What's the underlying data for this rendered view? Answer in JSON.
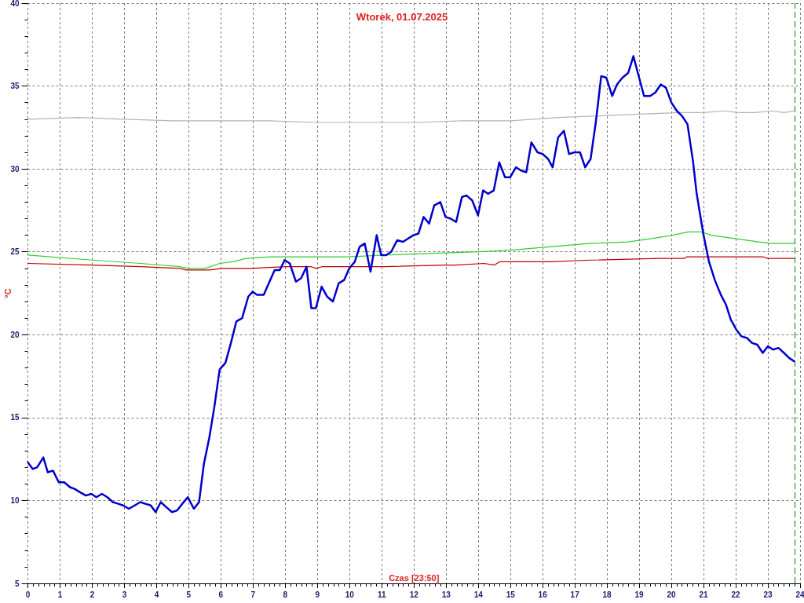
{
  "chart_data": {
    "type": "line",
    "title": "Wtorek, 01.07.2025",
    "xlabel": "Czas [23:50]",
    "ylabel": "°C",
    "xlim": [
      0,
      24
    ],
    "xticks": [
      0,
      1,
      2,
      3,
      4,
      5,
      6,
      7,
      8,
      9,
      10,
      11,
      12,
      13,
      14,
      15,
      16,
      17,
      18,
      19,
      20,
      21,
      22,
      23,
      24
    ],
    "ylim": [
      5,
      40
    ],
    "yticks": [
      5,
      10,
      15,
      20,
      25,
      30,
      35,
      40
    ],
    "grid": true,
    "marker": "none",
    "line_style": "solid",
    "series": [
      {
        "color": "#0000cc",
        "x": [
          0,
          0.15,
          0.29,
          0.48,
          0.62,
          0.78,
          0.96,
          1.13,
          1.31,
          1.45,
          1.62,
          1.8,
          1.97,
          2.13,
          2.3,
          2.47,
          2.64,
          2.81,
          2.96,
          3.14,
          3.32,
          3.49,
          3.65,
          3.82,
          3.97,
          4.13,
          4.3,
          4.48,
          4.64,
          4.8,
          4.97,
          5.16,
          5.32,
          5.47,
          5.64,
          5.8,
          5.96,
          6.14,
          6.31,
          6.48,
          6.66,
          6.85,
          6.99,
          7.12,
          7.33,
          7.51,
          7.67,
          7.83,
          7.98,
          8.14,
          8.33,
          8.49,
          8.66,
          8.81,
          8.95,
          9.13,
          9.3,
          9.48,
          9.66,
          9.83,
          9.99,
          10.16,
          10.31,
          10.47,
          10.65,
          10.84,
          10.98,
          11.13,
          11.29,
          11.48,
          11.66,
          11.82,
          11.98,
          12.14,
          12.3,
          12.47,
          12.63,
          12.82,
          12.98,
          13.14,
          13.31,
          13.49,
          13.63,
          13.81,
          13.99,
          14.15,
          14.3,
          14.48,
          14.65,
          14.83,
          14.99,
          15.17,
          15.33,
          15.49,
          15.65,
          15.84,
          16,
          16.17,
          16.31,
          16.48,
          16.66,
          16.82,
          16.99,
          17.16,
          17.32,
          17.49,
          17.65,
          17.82,
          17.98,
          18.16,
          18.31,
          18.48,
          18.66,
          18.82,
          18.97,
          19.15,
          19.34,
          19.5,
          19.67,
          19.83,
          20,
          20.17,
          20.33,
          20.5,
          20.67,
          20.78,
          20.88,
          21,
          21.17,
          21.35,
          21.54,
          21.7,
          21.85,
          22.02,
          22.18,
          22.35,
          22.51,
          22.67,
          22.84,
          23,
          23.16,
          23.33,
          23.5,
          23.66,
          23.81
        ],
        "values": [
          12.3,
          11.9,
          12.0,
          12.6,
          11.7,
          11.8,
          11.1,
          11.1,
          10.8,
          10.7,
          10.5,
          10.3,
          10.4,
          10.2,
          10.4,
          10.2,
          9.9,
          9.8,
          9.7,
          9.5,
          9.7,
          9.9,
          9.8,
          9.7,
          9.3,
          9.9,
          9.6,
          9.3,
          9.4,
          9.8,
          10.2,
          9.5,
          9.9,
          12.2,
          13.8,
          15.7,
          17.9,
          18.3,
          19.5,
          20.8,
          21.0,
          22.3,
          22.6,
          22.4,
          22.4,
          23.2,
          23.9,
          23.9,
          24.5,
          24.3,
          23.2,
          23.4,
          24.1,
          21.6,
          21.6,
          22.9,
          22.3,
          22.0,
          23.1,
          23.3,
          24.0,
          24.4,
          25.3,
          25.5,
          23.8,
          26.0,
          24.8,
          24.8,
          25.0,
          25.7,
          25.6,
          25.8,
          26.0,
          26.1,
          27.1,
          26.7,
          27.8,
          28.0,
          27.1,
          27.0,
          26.8,
          28.3,
          28.4,
          28.1,
          27.2,
          28.7,
          28.5,
          28.7,
          30.4,
          29.5,
          29.5,
          30.1,
          29.9,
          29.8,
          31.6,
          31.0,
          30.9,
          30.6,
          30.1,
          31.9,
          32.3,
          30.9,
          31.0,
          31.0,
          30.1,
          30.6,
          32.8,
          35.6,
          35.5,
          34.4,
          35.1,
          35.5,
          35.8,
          36.8,
          35.7,
          34.4,
          34.4,
          34.6,
          35.1,
          34.9,
          34.0,
          33.5,
          33.2,
          32.7,
          30.5,
          28.6,
          27.4,
          26.0,
          24.4,
          23.3,
          22.4,
          21.8,
          20.9,
          20.3,
          19.9,
          19.8,
          19.5,
          19.4,
          18.9,
          19.3,
          19.1,
          19.2,
          18.9,
          18.6,
          18.4
        ]
      },
      {
        "color": "#b4b4b4",
        "x": [
          0,
          1.57,
          3,
          4.5,
          6,
          7.5,
          9,
          10.5,
          12,
          13.5,
          15,
          16.5,
          17.7,
          19,
          20.27,
          21,
          21.65,
          22.06,
          22.6,
          23.12,
          23.5,
          23.81
        ],
        "values": [
          33.0,
          33.1,
          33.0,
          32.9,
          32.9,
          32.9,
          32.8,
          32.8,
          32.8,
          32.9,
          32.9,
          33.1,
          33.2,
          33.3,
          33.4,
          33.4,
          33.5,
          33.4,
          33.4,
          33.5,
          33.4,
          33.5
        ]
      },
      {
        "color": "#33cc33",
        "x": [
          0,
          2,
          3.5,
          4.74,
          4.99,
          5.52,
          5.96,
          6.37,
          6.78,
          7.51,
          9.95,
          11.09,
          12.39,
          14.01,
          15,
          16.21,
          17.43,
          18.65,
          19.38,
          20.03,
          20.52,
          20.92,
          21.25,
          21.98,
          22.71,
          23.12,
          23.81
        ],
        "values": [
          24.8,
          24.5,
          24.3,
          24.1,
          24.0,
          24.0,
          24.3,
          24.4,
          24.6,
          24.7,
          24.7,
          24.8,
          24.9,
          25.0,
          25.1,
          25.3,
          25.5,
          25.6,
          25.8,
          26.0,
          26.2,
          26.2,
          26.0,
          25.8,
          25.6,
          25.5,
          25.5
        ]
      },
      {
        "color": "#c00000",
        "x": [
          0,
          2,
          3.5,
          4.74,
          4.91,
          5.64,
          6.04,
          6.9,
          8,
          8.81,
          8.97,
          9.13,
          11.09,
          12.96,
          13.29,
          14.18,
          14.5,
          14.66,
          16.21,
          17.5,
          19.62,
          20.4,
          20.48,
          22.84,
          23,
          23.81
        ],
        "values": [
          24.3,
          24.2,
          24.1,
          24.0,
          23.9,
          23.9,
          24.0,
          24.0,
          24.1,
          24.1,
          24.0,
          24.1,
          24.1,
          24.2,
          24.2,
          24.3,
          24.2,
          24.4,
          24.4,
          24.5,
          24.6,
          24.6,
          24.7,
          24.7,
          24.6,
          24.6
        ]
      }
    ],
    "ref_lines": [
      {
        "axis": "x",
        "value": 23.83,
        "color": "#008000",
        "line_style": "dashed"
      }
    ]
  }
}
